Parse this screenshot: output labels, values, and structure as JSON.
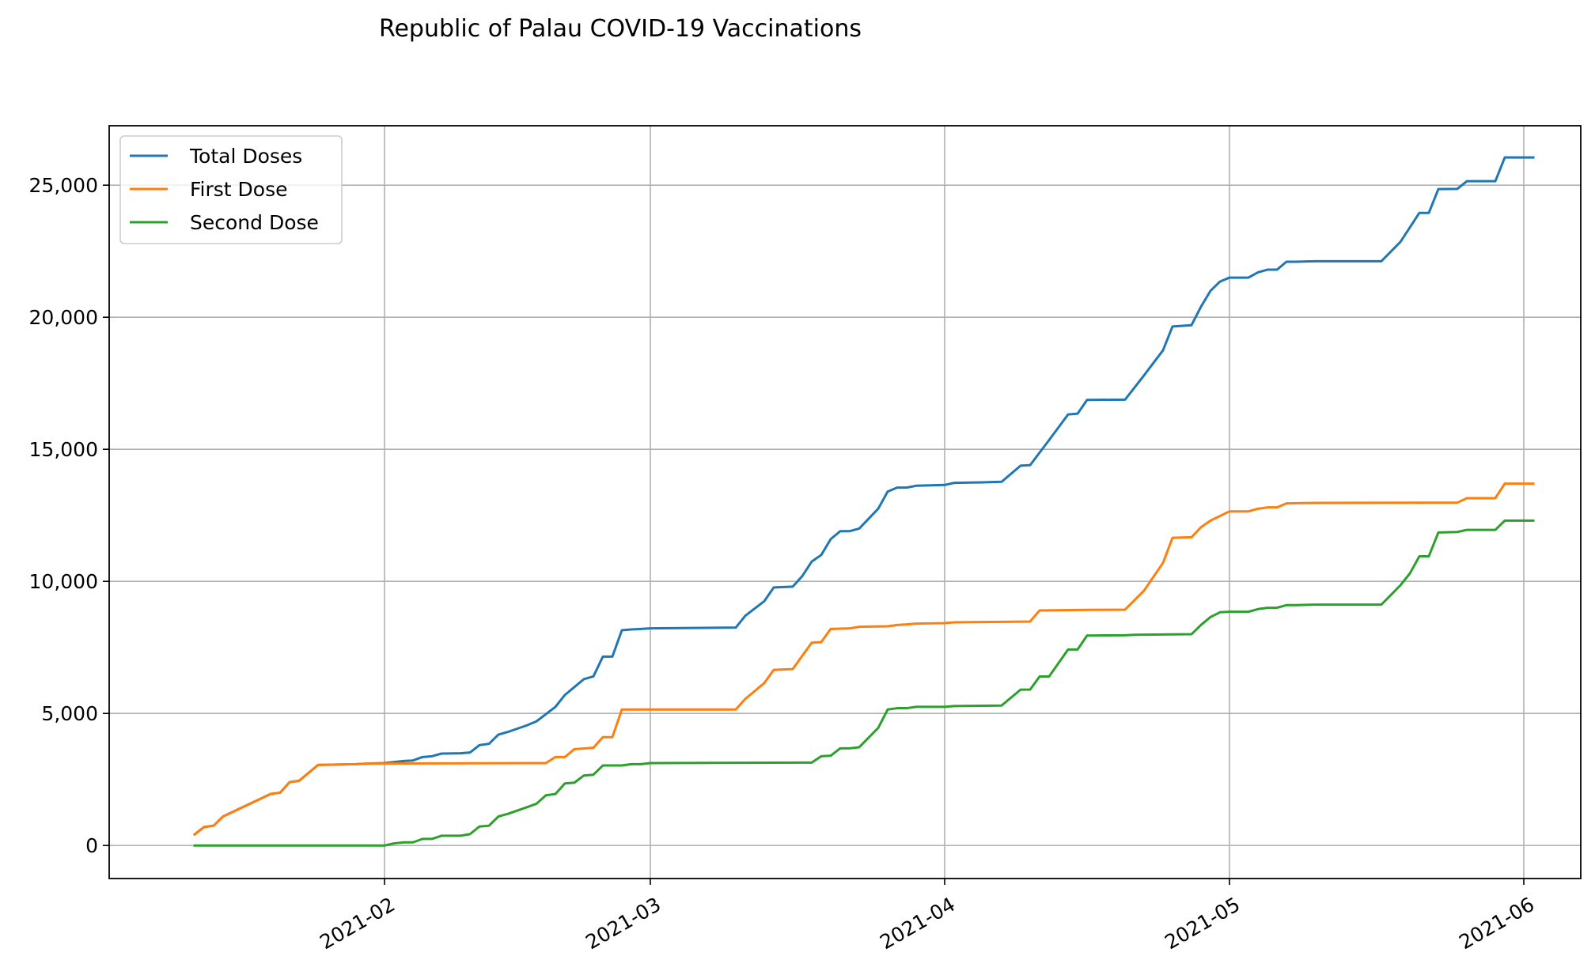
{
  "chart_data": {
    "type": "line",
    "title": "Republic of Palau COVID-19 Vaccinations",
    "xlabel": "",
    "ylabel": "",
    "x_axis_type": "date",
    "xlim": [
      "2021-01-03",
      "2021-06-07"
    ],
    "ylim": [
      -1250,
      27250
    ],
    "yticks": [
      0,
      5000,
      10000,
      15000,
      20000,
      25000
    ],
    "ytick_labels": [
      "0",
      "5,000",
      "10,000",
      "15,000",
      "20,000",
      "25,000"
    ],
    "xticks": [
      "2021-02-01",
      "2021-03-01",
      "2021-04-01",
      "2021-05-01",
      "2021-06-01"
    ],
    "xtick_labels": [
      "2021-02",
      "2021-03",
      "2021-04",
      "2021-05",
      "2021-06"
    ],
    "grid": true,
    "legend_position": "top-left",
    "series": [
      {
        "name": "Total Doses",
        "color": "#1f77b4",
        "points": [
          [
            "2021-01-12",
            420
          ],
          [
            "2021-01-13",
            700
          ],
          [
            "2021-01-14",
            750
          ],
          [
            "2021-01-15",
            1100
          ],
          [
            "2021-01-20",
            1950
          ],
          [
            "2021-01-21",
            2000
          ],
          [
            "2021-01-22",
            2400
          ],
          [
            "2021-01-23",
            2450
          ],
          [
            "2021-01-25",
            3050
          ],
          [
            "2021-01-29",
            3080
          ],
          [
            "2021-01-30",
            3100
          ],
          [
            "2021-02-01",
            3120
          ],
          [
            "2021-02-03",
            3200
          ],
          [
            "2021-02-04",
            3220
          ],
          [
            "2021-02-05",
            3350
          ],
          [
            "2021-02-06",
            3380
          ],
          [
            "2021-02-07",
            3480
          ],
          [
            "2021-02-09",
            3490
          ],
          [
            "2021-02-10",
            3520
          ],
          [
            "2021-02-11",
            3800
          ],
          [
            "2021-02-12",
            3850
          ],
          [
            "2021-02-13",
            4200
          ],
          [
            "2021-02-14",
            4300
          ],
          [
            "2021-02-16",
            4550
          ],
          [
            "2021-02-17",
            4700
          ],
          [
            "2021-02-19",
            5250
          ],
          [
            "2021-02-20",
            5700
          ],
          [
            "2021-02-22",
            6300
          ],
          [
            "2021-02-23",
            6400
          ],
          [
            "2021-02-24",
            7150
          ],
          [
            "2021-02-25",
            7150
          ],
          [
            "2021-02-26",
            8150
          ],
          [
            "2021-02-27",
            8180
          ],
          [
            "2021-02-28",
            8200
          ],
          [
            "2021-03-01",
            8220
          ],
          [
            "2021-03-10",
            8250
          ],
          [
            "2021-03-11",
            8700
          ],
          [
            "2021-03-13",
            9250
          ],
          [
            "2021-03-14",
            9770
          ],
          [
            "2021-03-16",
            9800
          ],
          [
            "2021-03-17",
            10200
          ],
          [
            "2021-03-18",
            10750
          ],
          [
            "2021-03-19",
            11000
          ],
          [
            "2021-03-20",
            11600
          ],
          [
            "2021-03-21",
            11900
          ],
          [
            "2021-03-22",
            11900
          ],
          [
            "2021-03-23",
            12000
          ],
          [
            "2021-03-25",
            12750
          ],
          [
            "2021-03-26",
            13400
          ],
          [
            "2021-03-27",
            13550
          ],
          [
            "2021-03-28",
            13550
          ],
          [
            "2021-03-29",
            13620
          ],
          [
            "2021-04-01",
            13650
          ],
          [
            "2021-04-02",
            13730
          ],
          [
            "2021-04-05",
            13750
          ],
          [
            "2021-04-07",
            13770
          ],
          [
            "2021-04-09",
            14380
          ],
          [
            "2021-04-10",
            14400
          ],
          [
            "2021-04-12",
            15350
          ],
          [
            "2021-04-14",
            16320
          ],
          [
            "2021-04-15",
            16350
          ],
          [
            "2021-04-16",
            16870
          ],
          [
            "2021-04-20",
            16880
          ],
          [
            "2021-04-22",
            17800
          ],
          [
            "2021-04-24",
            18750
          ],
          [
            "2021-04-25",
            19650
          ],
          [
            "2021-04-27",
            19700
          ],
          [
            "2021-04-28",
            20400
          ],
          [
            "2021-04-29",
            21000
          ],
          [
            "2021-04-30",
            21350
          ],
          [
            "2021-05-01",
            21500
          ],
          [
            "2021-05-03",
            21500
          ],
          [
            "2021-05-04",
            21700
          ],
          [
            "2021-05-05",
            21800
          ],
          [
            "2021-05-06",
            21800
          ],
          [
            "2021-05-07",
            22100
          ],
          [
            "2021-05-08",
            22100
          ],
          [
            "2021-05-10",
            22120
          ],
          [
            "2021-05-17",
            22120
          ],
          [
            "2021-05-19",
            22850
          ],
          [
            "2021-05-21",
            23950
          ],
          [
            "2021-05-22",
            23950
          ],
          [
            "2021-05-23",
            24850
          ],
          [
            "2021-05-25",
            24860
          ],
          [
            "2021-05-26",
            25150
          ],
          [
            "2021-05-29",
            25150
          ],
          [
            "2021-05-30",
            26050
          ],
          [
            "2021-06-02",
            26050
          ]
        ]
      },
      {
        "name": "First Dose",
        "color": "#ff7f0e",
        "points": [
          [
            "2021-01-12",
            420
          ],
          [
            "2021-01-13",
            700
          ],
          [
            "2021-01-14",
            750
          ],
          [
            "2021-01-15",
            1100
          ],
          [
            "2021-01-20",
            1950
          ],
          [
            "2021-01-21",
            2000
          ],
          [
            "2021-01-22",
            2400
          ],
          [
            "2021-01-23",
            2450
          ],
          [
            "2021-01-25",
            3050
          ],
          [
            "2021-01-29",
            3080
          ],
          [
            "2021-01-30",
            3100
          ],
          [
            "2021-02-17",
            3120
          ],
          [
            "2021-02-18",
            3120
          ],
          [
            "2021-02-19",
            3350
          ],
          [
            "2021-02-20",
            3350
          ],
          [
            "2021-02-21",
            3650
          ],
          [
            "2021-02-23",
            3700
          ],
          [
            "2021-02-24",
            4100
          ],
          [
            "2021-02-25",
            4100
          ],
          [
            "2021-02-26",
            5150
          ],
          [
            "2021-03-10",
            5150
          ],
          [
            "2021-03-11",
            5550
          ],
          [
            "2021-03-13",
            6150
          ],
          [
            "2021-03-14",
            6650
          ],
          [
            "2021-03-16",
            6680
          ],
          [
            "2021-03-18",
            7680
          ],
          [
            "2021-03-19",
            7700
          ],
          [
            "2021-03-20",
            8200
          ],
          [
            "2021-03-22",
            8220
          ],
          [
            "2021-03-23",
            8280
          ],
          [
            "2021-03-26",
            8300
          ],
          [
            "2021-03-27",
            8350
          ],
          [
            "2021-03-28",
            8370
          ],
          [
            "2021-03-29",
            8400
          ],
          [
            "2021-04-01",
            8420
          ],
          [
            "2021-04-02",
            8450
          ],
          [
            "2021-04-05",
            8460
          ],
          [
            "2021-04-10",
            8480
          ],
          [
            "2021-04-11",
            8900
          ],
          [
            "2021-04-16",
            8920
          ],
          [
            "2021-04-20",
            8930
          ],
          [
            "2021-04-22",
            9650
          ],
          [
            "2021-04-24",
            10700
          ],
          [
            "2021-04-25",
            11650
          ],
          [
            "2021-04-27",
            11670
          ],
          [
            "2021-04-28",
            12050
          ],
          [
            "2021-04-29",
            12300
          ],
          [
            "2021-05-01",
            12650
          ],
          [
            "2021-05-03",
            12650
          ],
          [
            "2021-05-04",
            12750
          ],
          [
            "2021-05-05",
            12800
          ],
          [
            "2021-05-06",
            12800
          ],
          [
            "2021-05-07",
            12950
          ],
          [
            "2021-05-10",
            12970
          ],
          [
            "2021-05-25",
            12980
          ],
          [
            "2021-05-26",
            13150
          ],
          [
            "2021-05-29",
            13150
          ],
          [
            "2021-05-30",
            13700
          ],
          [
            "2021-06-02",
            13700
          ]
        ]
      },
      {
        "name": "Second Dose",
        "color": "#2ca02c",
        "points": [
          [
            "2021-01-12",
            0
          ],
          [
            "2021-02-01",
            0
          ],
          [
            "2021-02-02",
            80
          ],
          [
            "2021-02-03",
            120
          ],
          [
            "2021-02-04",
            120
          ],
          [
            "2021-02-05",
            250
          ],
          [
            "2021-02-06",
            250
          ],
          [
            "2021-02-07",
            370
          ],
          [
            "2021-02-09",
            370
          ],
          [
            "2021-02-10",
            430
          ],
          [
            "2021-02-11",
            720
          ],
          [
            "2021-02-12",
            750
          ],
          [
            "2021-02-13",
            1100
          ],
          [
            "2021-02-14",
            1200
          ],
          [
            "2021-02-16",
            1450
          ],
          [
            "2021-02-17",
            1580
          ],
          [
            "2021-02-18",
            1900
          ],
          [
            "2021-02-19",
            1950
          ],
          [
            "2021-02-20",
            2350
          ],
          [
            "2021-02-21",
            2380
          ],
          [
            "2021-02-22",
            2650
          ],
          [
            "2021-02-23",
            2680
          ],
          [
            "2021-02-24",
            3030
          ],
          [
            "2021-02-26",
            3030
          ],
          [
            "2021-02-27",
            3080
          ],
          [
            "2021-02-28",
            3080
          ],
          [
            "2021-03-01",
            3120
          ],
          [
            "2021-03-18",
            3140
          ],
          [
            "2021-03-19",
            3380
          ],
          [
            "2021-03-20",
            3400
          ],
          [
            "2021-03-21",
            3680
          ],
          [
            "2021-03-22",
            3680
          ],
          [
            "2021-03-23",
            3720
          ],
          [
            "2021-03-25",
            4450
          ],
          [
            "2021-03-26",
            5150
          ],
          [
            "2021-03-27",
            5200
          ],
          [
            "2021-03-28",
            5200
          ],
          [
            "2021-03-29",
            5250
          ],
          [
            "2021-04-01",
            5250
          ],
          [
            "2021-04-02",
            5280
          ],
          [
            "2021-04-07",
            5300
          ],
          [
            "2021-04-09",
            5900
          ],
          [
            "2021-04-10",
            5900
          ],
          [
            "2021-04-11",
            6400
          ],
          [
            "2021-04-12",
            6400
          ],
          [
            "2021-04-14",
            7420
          ],
          [
            "2021-04-15",
            7420
          ],
          [
            "2021-04-16",
            7950
          ],
          [
            "2021-04-20",
            7960
          ],
          [
            "2021-04-21",
            7980
          ],
          [
            "2021-04-24",
            7990
          ],
          [
            "2021-04-27",
            8000
          ],
          [
            "2021-04-28",
            8350
          ],
          [
            "2021-04-29",
            8650
          ],
          [
            "2021-04-30",
            8830
          ],
          [
            "2021-05-01",
            8850
          ],
          [
            "2021-05-03",
            8850
          ],
          [
            "2021-05-04",
            8950
          ],
          [
            "2021-05-05",
            9000
          ],
          [
            "2021-05-06",
            9000
          ],
          [
            "2021-05-07",
            9100
          ],
          [
            "2021-05-08",
            9100
          ],
          [
            "2021-05-10",
            9120
          ],
          [
            "2021-05-17",
            9120
          ],
          [
            "2021-05-19",
            9850
          ],
          [
            "2021-05-20",
            10300
          ],
          [
            "2021-05-21",
            10950
          ],
          [
            "2021-05-22",
            10950
          ],
          [
            "2021-05-23",
            11850
          ],
          [
            "2021-05-25",
            11870
          ],
          [
            "2021-05-26",
            11950
          ],
          [
            "2021-05-29",
            11950
          ],
          [
            "2021-05-30",
            12300
          ],
          [
            "2021-06-02",
            12300
          ]
        ]
      }
    ]
  }
}
